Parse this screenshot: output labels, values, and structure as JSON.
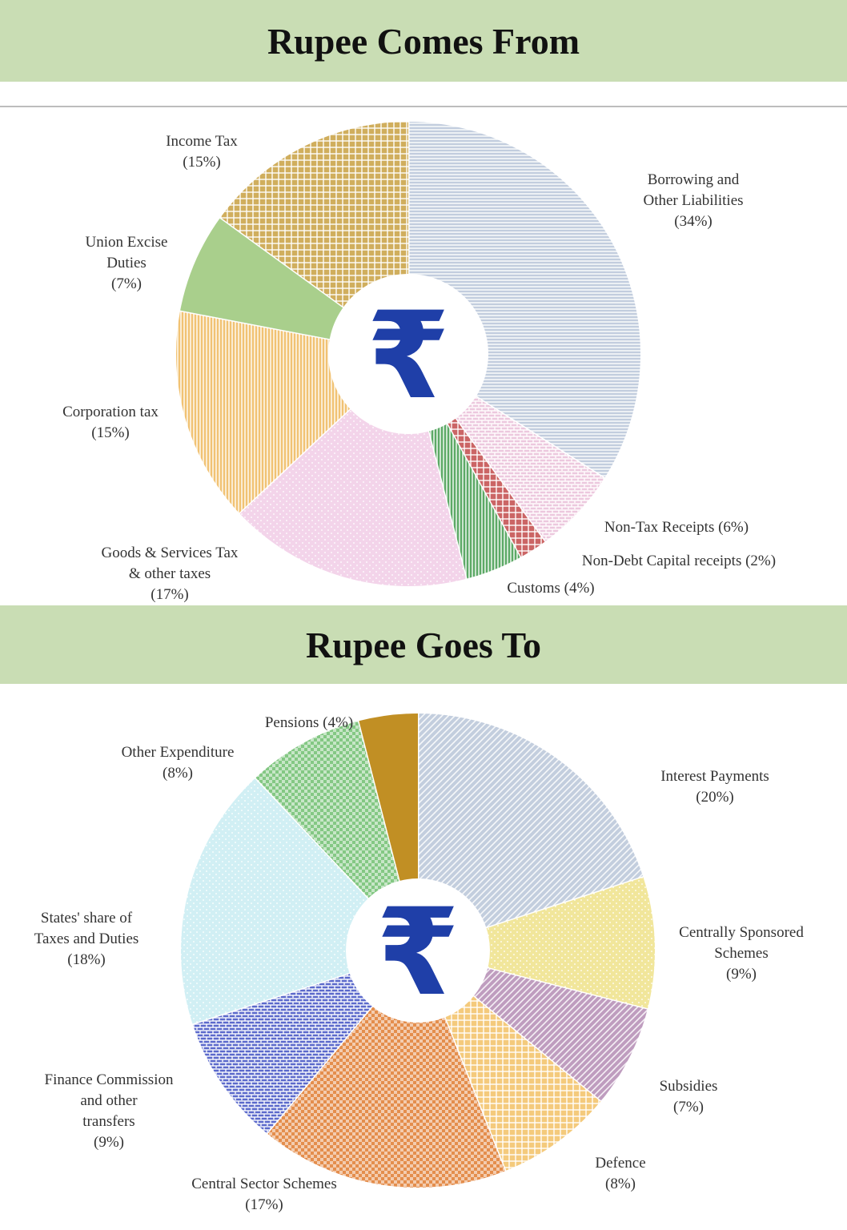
{
  "charts": {
    "top": {
      "title": "Rupee Comes From"
    },
    "bottom": {
      "title": "Rupee Goes To"
    }
  },
  "symbol": "₹",
  "symbol_color": "#1f3fa8",
  "chart_data": [
    {
      "type": "pie",
      "title": "Rupee Comes From",
      "slices": [
        {
          "label": "Borrowing and Other Liabilities",
          "percent_label": "(34%)",
          "value": 34,
          "color": "#b7c4d8",
          "pattern": "hlines"
        },
        {
          "label": "Non-Tax Receipts",
          "percent_label": "(6%)",
          "value": 6,
          "color": "#e9bfd9",
          "pattern": "brick"
        },
        {
          "label": "Non-Debt Capital receipts",
          "percent_label": "(2%)",
          "value": 2,
          "color": "#c24a4a",
          "pattern": "grid"
        },
        {
          "label": "Customs",
          "percent_label": "(4%)",
          "value": 4,
          "color": "#3f9a4b",
          "pattern": "vlines"
        },
        {
          "label": "Goods & Services Tax & other taxes",
          "percent_label": "(17%)",
          "value": 17,
          "color": "#f1cde6",
          "pattern": "dots"
        },
        {
          "label": "Corporation tax",
          "percent_label": "(15%)",
          "value": 15,
          "color": "#efb75a",
          "pattern": "vlines"
        },
        {
          "label": "Union Excise Duties",
          "percent_label": "(7%)",
          "value": 7,
          "color": "#a9cf8c",
          "pattern": "solid"
        },
        {
          "label": "Income Tax",
          "percent_label": "(15%)",
          "value": 15,
          "color": "#c8a041",
          "pattern": "grid"
        }
      ]
    },
    {
      "type": "pie",
      "title": "Rupee Goes To",
      "slices": [
        {
          "label": "Interest Payments",
          "percent_label": "(20%)",
          "value": 20,
          "color": "#b9c6d9",
          "pattern": "diag"
        },
        {
          "label": "Centrally Sponsored Schemes",
          "percent_label": "(9%)",
          "value": 9,
          "color": "#efe28a",
          "pattern": "dots"
        },
        {
          "label": "Subsidies",
          "percent_label": "(7%)",
          "value": 7,
          "color": "#b48cb4",
          "pattern": "diag"
        },
        {
          "label": "Defence",
          "percent_label": "(8%)",
          "value": 8,
          "color": "#f2c165",
          "pattern": "grid"
        },
        {
          "label": "Central Sector Schemes",
          "percent_label": "(17%)",
          "value": 17,
          "color": "#e07a2e",
          "pattern": "check"
        },
        {
          "label": "Finance Commission and other transfers",
          "percent_label": "(9%)",
          "value": 9,
          "color": "#3e4fc2",
          "pattern": "brick"
        },
        {
          "label": "States' share of Taxes and Duties",
          "percent_label": "(18%)",
          "value": 18,
          "color": "#c9ecf2",
          "pattern": "dots"
        },
        {
          "label": "Other Expenditure",
          "percent_label": "(8%)",
          "value": 8,
          "color": "#6fbf6f",
          "pattern": "check"
        },
        {
          "label": "Pensions",
          "percent_label": "(4%)",
          "value": 4,
          "color": "#c18f24",
          "pattern": "solid"
        }
      ]
    }
  ]
}
